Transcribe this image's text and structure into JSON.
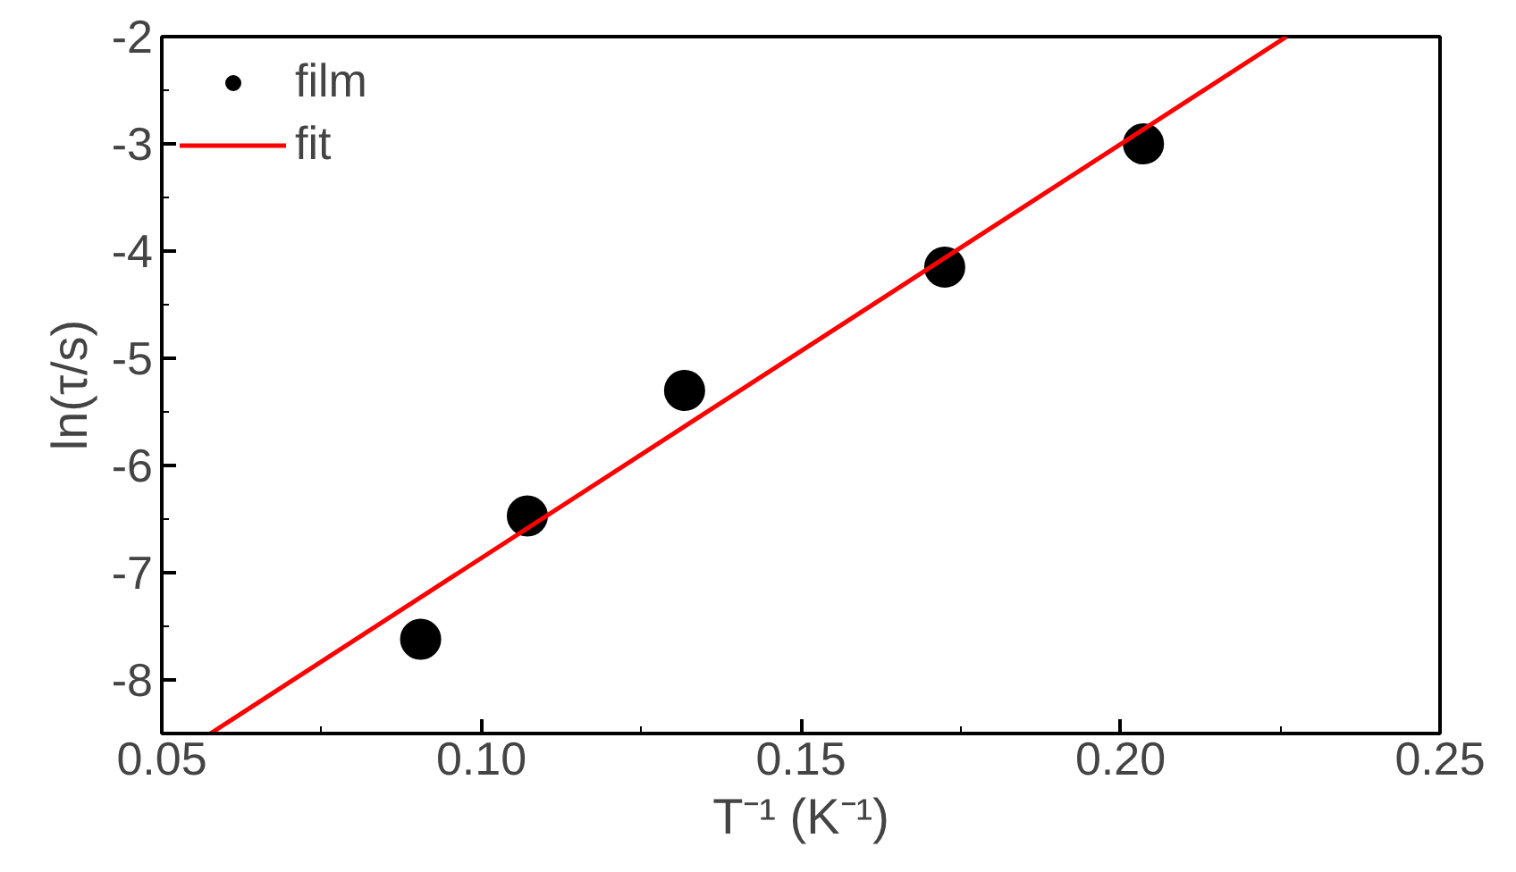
{
  "chart_data": {
    "type": "scatter",
    "xlabel": "T⁻¹ (K⁻¹)",
    "ylabel": "ln(τ/s)",
    "series": [
      {
        "name": "film",
        "color": "#000000",
        "marker": "circle",
        "x": [
          0.0905,
          0.1072,
          0.1318,
          0.1725,
          0.2036
        ],
        "values": [
          -7.62,
          -6.47,
          -5.3,
          -4.15,
          -3.0
        ]
      },
      {
        "name": "fit",
        "type": "line",
        "color": "#ff0000",
        "marker": "none",
        "line_style": "solid",
        "x": [
          0.0576,
          0.226
        ],
        "values": [
          -8.5,
          -2.0
        ]
      }
    ],
    "xlim": [
      0.05,
      0.25
    ],
    "ylim": [
      -8.5,
      -2
    ],
    "xticks": [
      0.05,
      {
        "value": 0.1,
        "label": "0.10"
      },
      0.15,
      {
        "value": 0.2,
        "label": "0.20"
      },
      0.25
    ],
    "yticks": [
      -8,
      -7,
      -6,
      -5,
      -4,
      -3,
      -2
    ],
    "grid": false,
    "legend": "top left"
  }
}
